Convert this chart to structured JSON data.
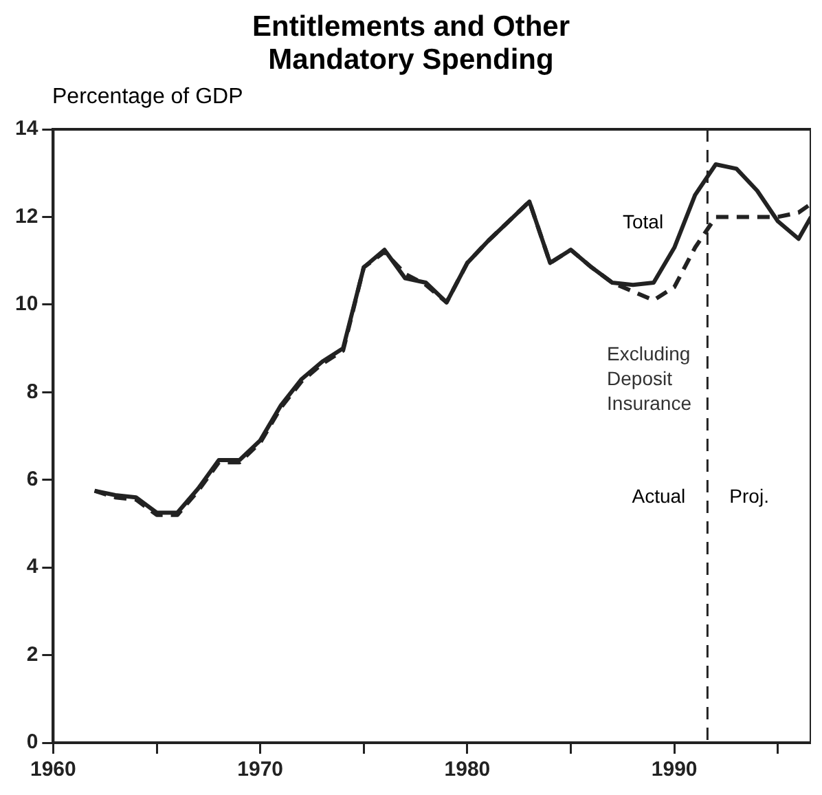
{
  "chart_data": {
    "type": "line",
    "title": "Entitlements and Other Mandatory Spending",
    "ylabel": "Percentage of GDP",
    "x": [
      1962,
      1963,
      1964,
      1965,
      1966,
      1967,
      1968,
      1969,
      1970,
      1971,
      1972,
      1973,
      1974,
      1975,
      1976,
      1977,
      1978,
      1979,
      1980,
      1981,
      1982,
      1983,
      1984,
      1985,
      1986,
      1987,
      1988,
      1989,
      1990,
      1991,
      1992,
      1993,
      1994,
      1995,
      1996,
      1996.6
    ],
    "series": [
      {
        "name": "Total",
        "color": "#222222",
        "line_style": "solid",
        "values": [
          5.75,
          5.65,
          5.6,
          5.25,
          5.25,
          5.8,
          6.45,
          6.45,
          6.9,
          7.7,
          8.3,
          8.7,
          9.0,
          10.85,
          11.25,
          10.6,
          10.5,
          10.05,
          10.95,
          11.45,
          11.9,
          12.35,
          10.95,
          11.25,
          10.85,
          10.5,
          10.45,
          10.5,
          11.3,
          12.5,
          13.2,
          13.1,
          12.6,
          11.9,
          11.5,
          12.0
        ]
      },
      {
        "name": "Excluding Deposit Insurance",
        "color": "#222222",
        "line_style": "dashed",
        "values": [
          5.75,
          5.6,
          5.55,
          5.2,
          5.2,
          5.75,
          6.4,
          6.4,
          6.85,
          7.65,
          8.25,
          8.65,
          8.95,
          10.85,
          11.2,
          10.7,
          10.45,
          10.05,
          10.95,
          11.45,
          11.9,
          12.35,
          10.95,
          11.25,
          10.85,
          10.5,
          10.3,
          10.1,
          10.4,
          11.3,
          12.0,
          12.0,
          12.0,
          12.0,
          12.1,
          12.3
        ]
      }
    ],
    "xlim": [
      1960,
      1996.6
    ],
    "xticks": [
      1960,
      {
        "value": 1965,
        "label": null
      },
      1970,
      {
        "value": 1975,
        "label": null
      },
      1980,
      {
        "value": 1985,
        "label": null
      },
      1990,
      {
        "value": 1995,
        "label": null
      }
    ],
    "ylim": [
      0,
      14
    ],
    "yticks": [
      0,
      2,
      4,
      6,
      8,
      10,
      12,
      14
    ],
    "ref_lines": [
      {
        "axis": "x",
        "value": 1991.6,
        "line_style": "dashed",
        "color": "#222222"
      }
    ],
    "annotations": [
      "Actual",
      "Proj."
    ],
    "grid": false,
    "legend": false,
    "marker": "none"
  }
}
